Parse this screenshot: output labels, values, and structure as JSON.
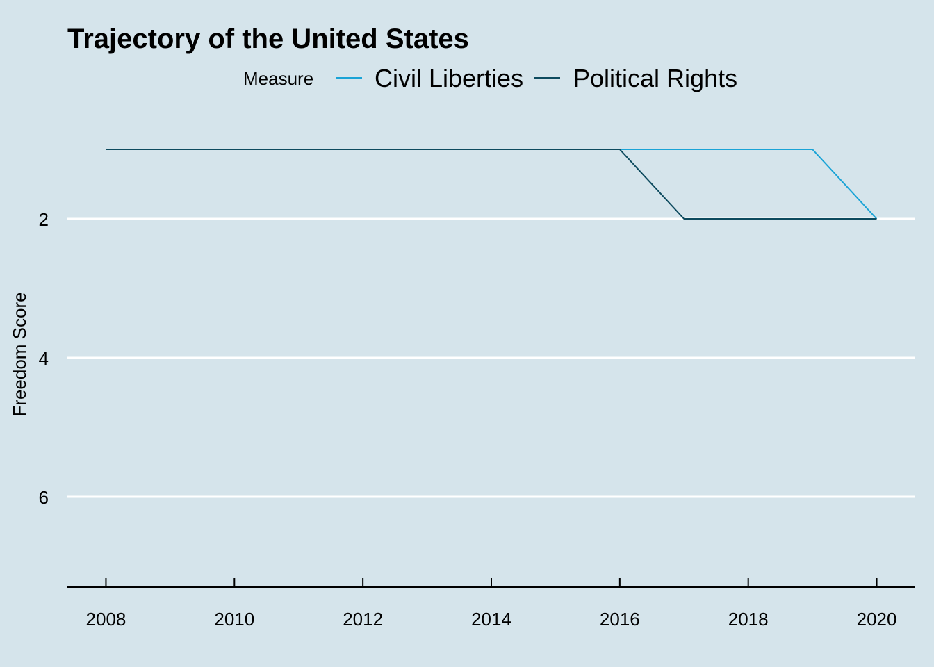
{
  "chart_data": {
    "type": "line",
    "title": "Trajectory of the United States",
    "xlabel": "",
    "ylabel": "Freedom Score",
    "legend": {
      "title": "Measure",
      "placement": "top-center"
    },
    "x": [
      2008,
      2009,
      2010,
      2011,
      2012,
      2013,
      2014,
      2015,
      2016,
      2017,
      2018,
      2019,
      2020
    ],
    "series": [
      {
        "name": "Civil Liberties",
        "color": "#1aa3d6",
        "values": [
          1,
          1,
          1,
          1,
          1,
          1,
          1,
          1,
          1,
          1,
          1,
          1,
          2
        ]
      },
      {
        "name": "Political Rights",
        "color": "#0d4a5e",
        "values": [
          1,
          1,
          1,
          1,
          1,
          1,
          1,
          1,
          1,
          2,
          2,
          2,
          2
        ]
      }
    ],
    "xticks": [
      2008,
      2010,
      2012,
      2014,
      2016,
      2018,
      2020
    ],
    "yticks": [
      2,
      4,
      6
    ],
    "xlim": [
      2007.4,
      2020.6
    ],
    "ylim": [
      7.3,
      0.35
    ],
    "y_reversed": true,
    "grid": "horizontal-major",
    "colors": {
      "background": "#d5e4eb",
      "gridline": "#ffffff",
      "axis": "#000000"
    }
  }
}
